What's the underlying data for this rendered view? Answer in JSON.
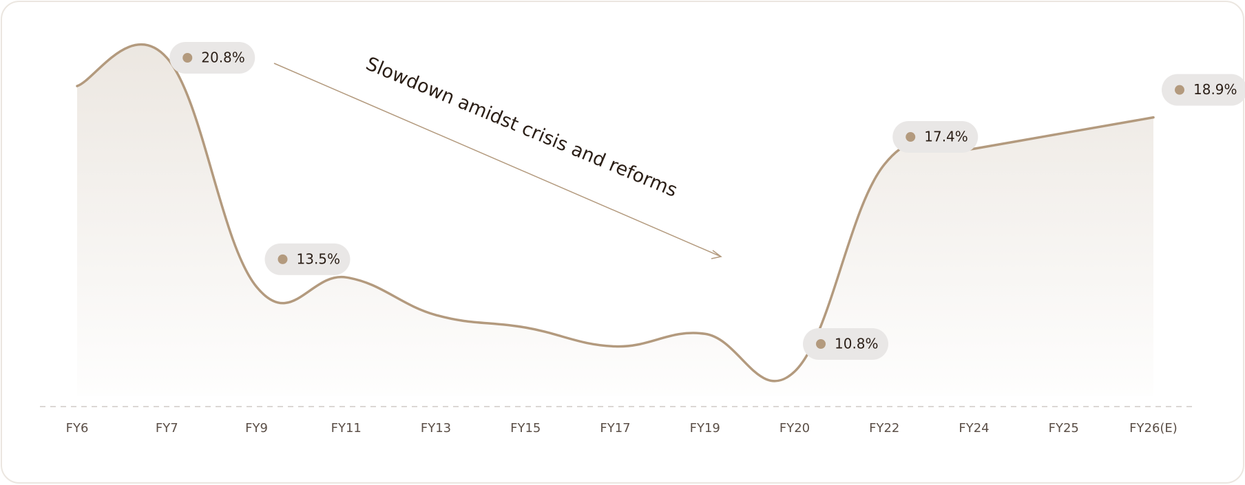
{
  "chart_data": {
    "type": "area",
    "categories": [
      "FY6",
      "FY7",
      "FY9",
      "FY11",
      "FY13",
      "FY15",
      "FY17",
      "FY19",
      "FY20",
      "FY22",
      "FY24",
      "FY25",
      "FY26(E)"
    ],
    "values": [
      19.9,
      20.8,
      13.5,
      13.8,
      12.6,
      12.2,
      11.6,
      12.0,
      10.8,
      17.4,
      17.9,
      18.4,
      18.9
    ],
    "value_labels": [
      null,
      "20.8%",
      "13.5%",
      null,
      null,
      null,
      null,
      null,
      "10.8%",
      "17.4%",
      null,
      null,
      "18.9%"
    ],
    "color": "#b39a7e",
    "annotation": "Slowdown amidst crisis and reforms"
  }
}
